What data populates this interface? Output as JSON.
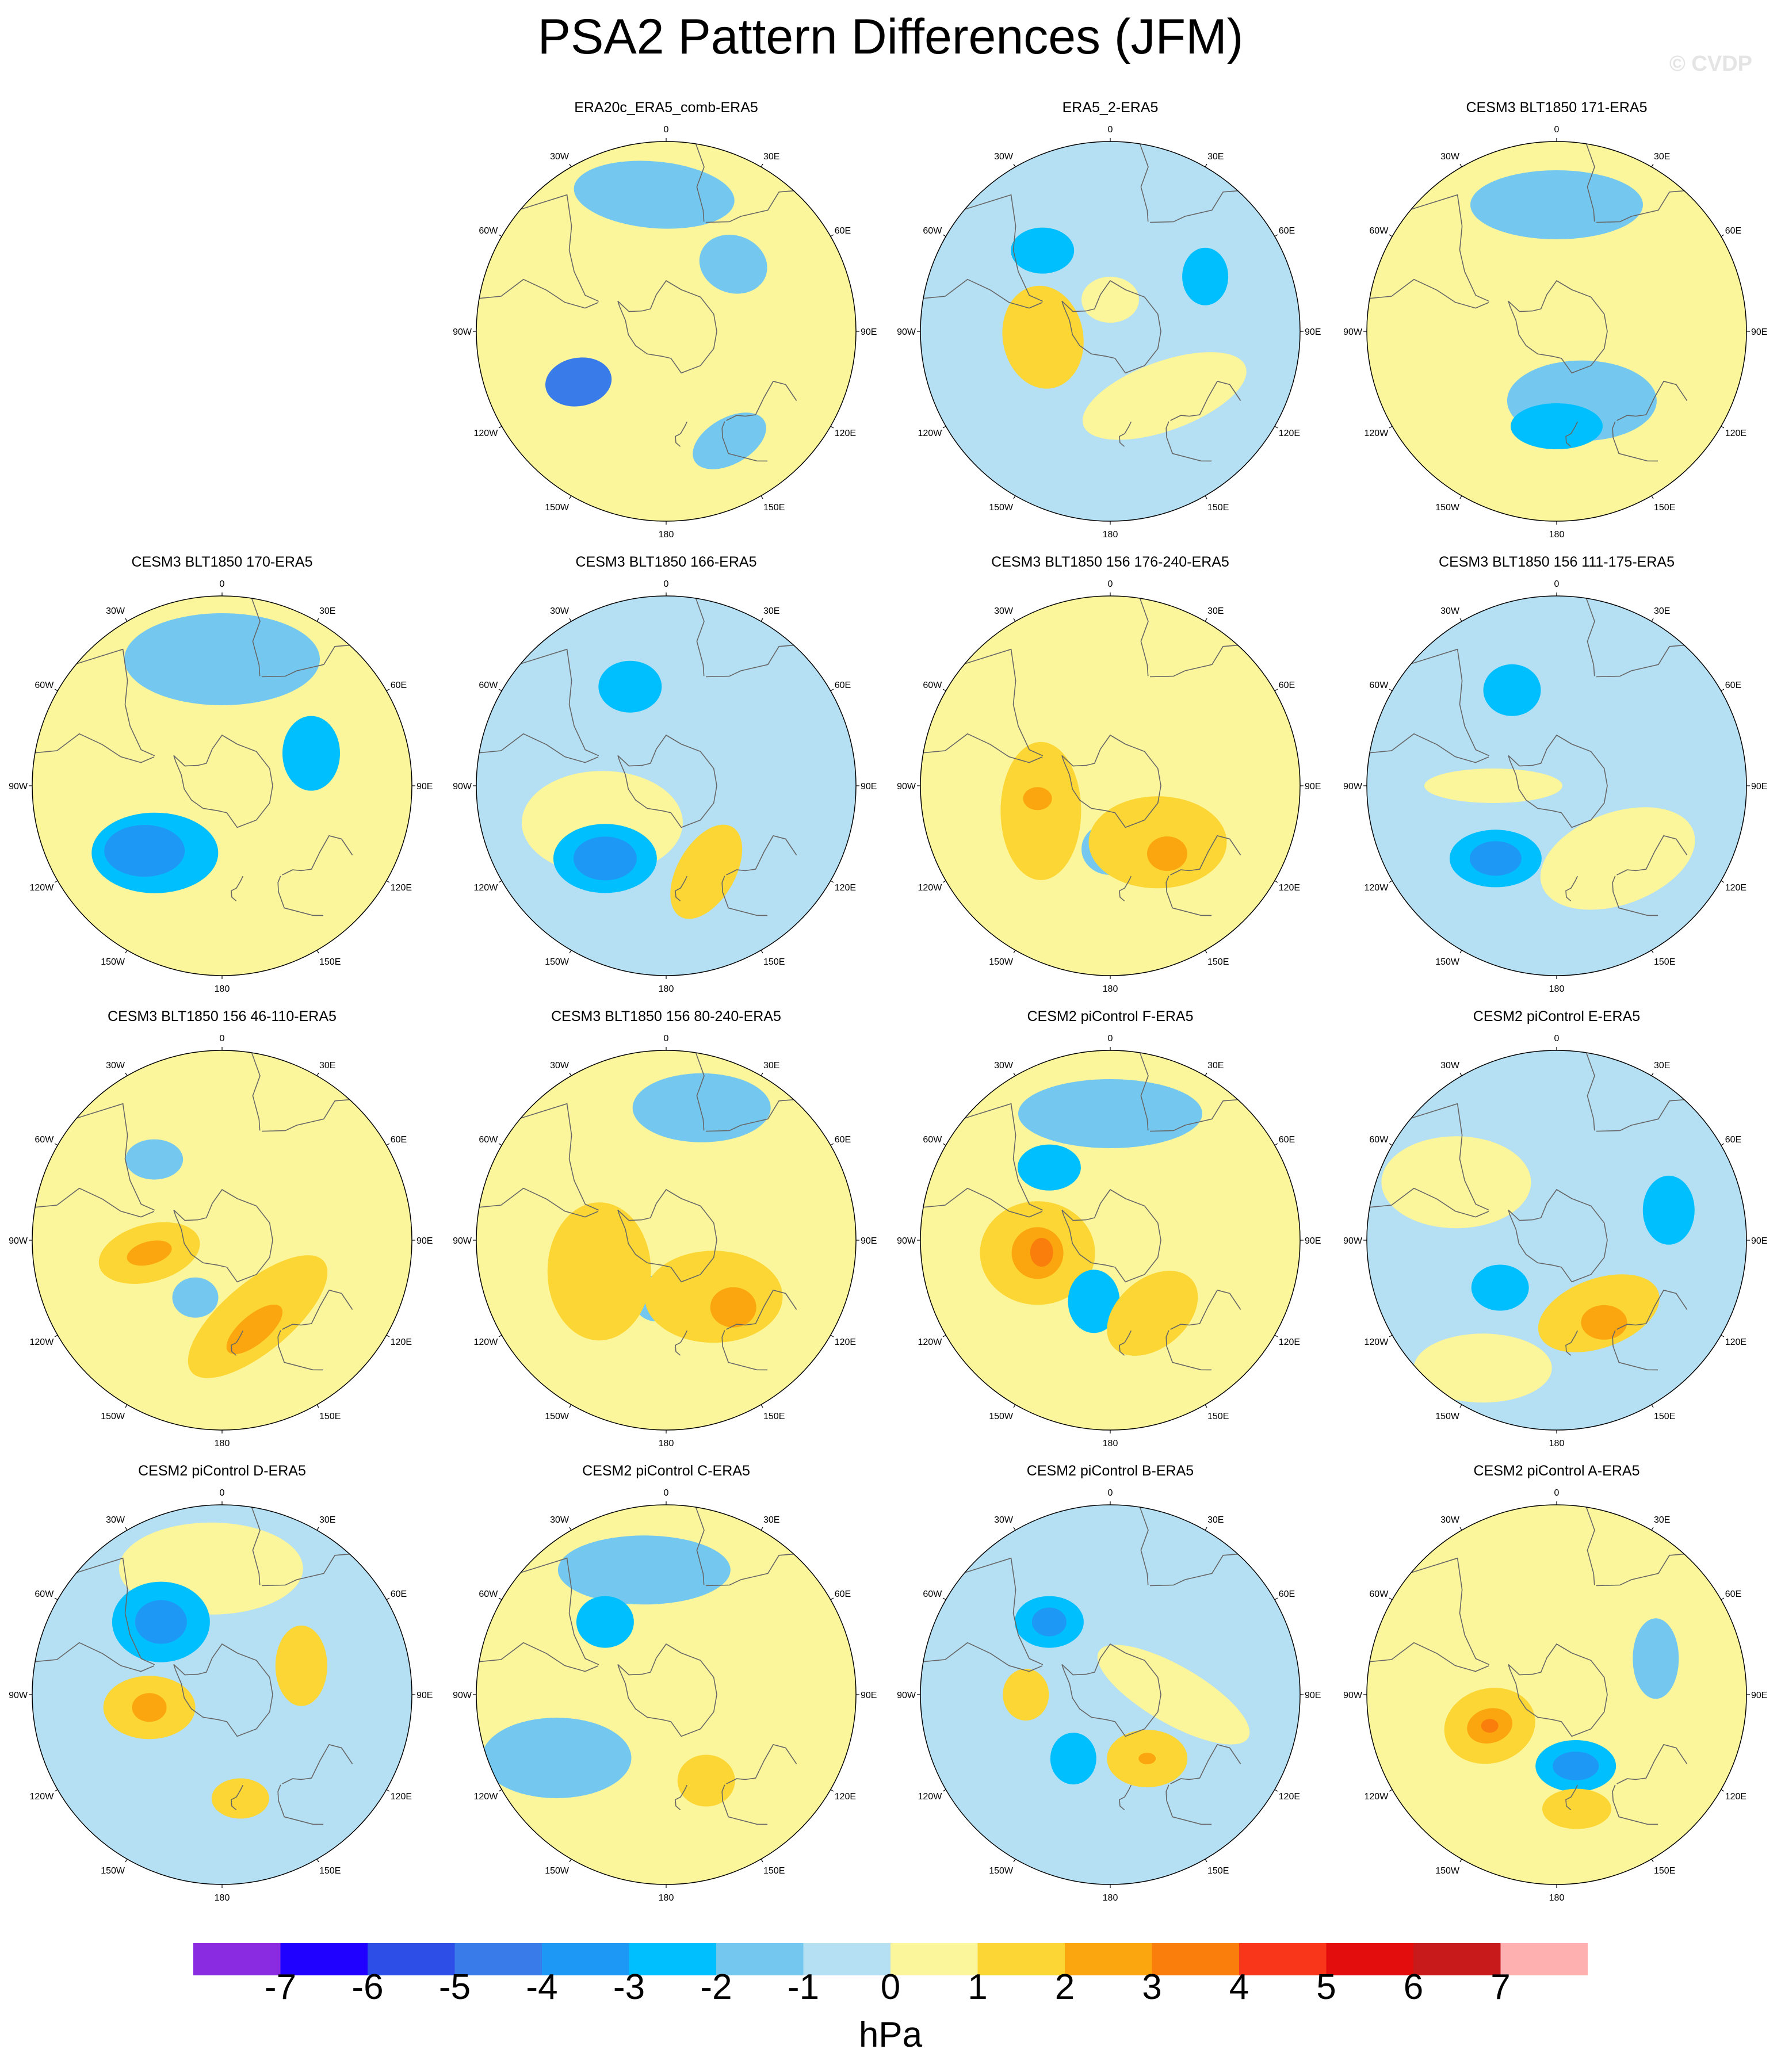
{
  "title": "PSA2 Pattern Differences (JFM)",
  "watermark": "© CVDP",
  "lon_labels": [
    "0",
    "30E",
    "60E",
    "90E",
    "120E",
    "150E",
    "180",
    "150W",
    "120W",
    "90W",
    "60W",
    "30W"
  ],
  "colorbar": {
    "units": "hPa",
    "ticks": [
      "-7",
      "-6",
      "-5",
      "-4",
      "-3",
      "-2",
      "-1",
      "0",
      "1",
      "2",
      "3",
      "4",
      "5",
      "6",
      "7"
    ],
    "colors": [
      "#8a2be2",
      "#2000ff",
      "#2e4ee8",
      "#3a7bea",
      "#1e98f5",
      "#00bfff",
      "#74c8f0",
      "#b5dff2",
      "#fbf59b",
      "#fcd634",
      "#fba50f",
      "#f97e0c",
      "#f9361a",
      "#e40d0d",
      "#c81a1a",
      "#feb0b0"
    ]
  },
  "panels": [
    {
      "title": "ERA20c_ERA5_comb-ERA5",
      "background": "#fbf59b",
      "blobs": [
        {
          "lat": -42,
          "lon": -120,
          "rx": 58,
          "ry": 42,
          "rot": -10,
          "level": -4
        },
        {
          "lat": -55,
          "lon": -90,
          "rx": 52,
          "ry": 24,
          "rot": -15,
          "level": 1
        },
        {
          "lat": -25,
          "lon": -5,
          "rx": 140,
          "ry": 58,
          "rot": 5,
          "level": -1
        },
        {
          "lat": -45,
          "lon": 45,
          "rx": 60,
          "ry": 50,
          "rot": 20,
          "level": -1
        },
        {
          "lat": -30,
          "lon": 150,
          "rx": 70,
          "ry": 40,
          "rot": -30,
          "level": -1
        }
      ]
    },
    {
      "title": "ERA5_2-ERA5",
      "background": "#b5dff2",
      "blobs": [
        {
          "lat": -58,
          "lon": -95,
          "rx": 70,
          "ry": 90,
          "rot": -10,
          "level": 2
        },
        {
          "lat": -50,
          "lon": 140,
          "rx": 150,
          "ry": 60,
          "rot": -20,
          "level": 1
        },
        {
          "lat": -38,
          "lon": 60,
          "rx": 40,
          "ry": 50,
          "rot": 0,
          "level": -2
        },
        {
          "lat": -40,
          "lon": -40,
          "rx": 55,
          "ry": 40,
          "rot": 0,
          "level": -2
        },
        {
          "lat": -75,
          "lon": 0,
          "rx": 50,
          "ry": 40,
          "rot": 0,
          "level": 1
        }
      ]
    },
    {
      "title": "CESM3 BLT1850 171-ERA5",
      "background": "#fbf59b",
      "blobs": [
        {
          "lat": -55,
          "lon": 160,
          "rx": 130,
          "ry": 70,
          "rot": 0,
          "level": -1
        },
        {
          "lat": -45,
          "lon": 180,
          "rx": 80,
          "ry": 40,
          "rot": 0,
          "level": -2
        },
        {
          "lat": -30,
          "lon": 0,
          "rx": 150,
          "ry": 60,
          "rot": 0,
          "level": -1
        },
        {
          "lat": -45,
          "lon": -100,
          "rx": 20,
          "ry": 15,
          "rot": 0,
          "level": 1
        }
      ]
    },
    {
      "title": "CESM3 BLT1850 170-ERA5",
      "background": "#fbf59b",
      "blobs": [
        {
          "lat": -45,
          "lon": -135,
          "rx": 110,
          "ry": 70,
          "rot": 0,
          "level": -2
        },
        {
          "lat": -42,
          "lon": -130,
          "rx": 70,
          "ry": 45,
          "rot": 0,
          "level": -3
        },
        {
          "lat": -45,
          "lon": 70,
          "rx": 50,
          "ry": 65,
          "rot": 0,
          "level": -2
        },
        {
          "lat": -30,
          "lon": 0,
          "rx": 170,
          "ry": 80,
          "rot": 0,
          "level": -1
        },
        {
          "lat": -55,
          "lon": -85,
          "rx": 40,
          "ry": 40,
          "rot": 0,
          "level": 1
        }
      ]
    },
    {
      "title": "CESM3 BLT1850 166-ERA5",
      "background": "#b5dff2",
      "blobs": [
        {
          "lat": -55,
          "lon": -120,
          "rx": 140,
          "ry": 90,
          "rot": 0,
          "level": 1
        },
        {
          "lat": -45,
          "lon": -140,
          "rx": 90,
          "ry": 60,
          "rot": 0,
          "level": -2
        },
        {
          "lat": -45,
          "lon": -140,
          "rx": 55,
          "ry": 38,
          "rot": 0,
          "level": -3
        },
        {
          "lat": -45,
          "lon": 155,
          "rx": 50,
          "ry": 90,
          "rot": 30,
          "level": 2
        },
        {
          "lat": -40,
          "lon": -20,
          "rx": 55,
          "ry": 45,
          "rot": 0,
          "level": -2
        }
      ]
    },
    {
      "title": "CESM3 BLT1850 156 176-240-ERA5",
      "background": "#fbf59b",
      "blobs": [
        {
          "lat": -55,
          "lon": -110,
          "rx": 70,
          "ry": 120,
          "rot": 0,
          "level": 2
        },
        {
          "lat": -55,
          "lon": 140,
          "rx": 120,
          "ry": 80,
          "rot": 0,
          "level": 2
        },
        {
          "lat": -48,
          "lon": 140,
          "rx": 35,
          "ry": 30,
          "rot": 0,
          "level": 3
        },
        {
          "lat": -60,
          "lon": 180,
          "rx": 50,
          "ry": 45,
          "rot": 0,
          "level": -1
        },
        {
          "lat": -55,
          "lon": -100,
          "rx": 25,
          "ry": 20,
          "rot": 0,
          "level": 3
        }
      ]
    },
    {
      "title": "CESM3 BLT1850 156 111-175-ERA5",
      "background": "#b5dff2",
      "blobs": [
        {
          "lat": -45,
          "lon": -140,
          "rx": 80,
          "ry": 50,
          "rot": 0,
          "level": -2
        },
        {
          "lat": -45,
          "lon": -140,
          "rx": 45,
          "ry": 30,
          "rot": 0,
          "level": -3
        },
        {
          "lat": -40,
          "lon": -25,
          "rx": 50,
          "ry": 45,
          "rot": 0,
          "level": -2
        },
        {
          "lat": -45,
          "lon": 140,
          "rx": 140,
          "ry": 80,
          "rot": -20,
          "level": 1
        },
        {
          "lat": -60,
          "lon": -90,
          "rx": 120,
          "ry": 30,
          "rot": 0,
          "level": 1
        }
      ]
    },
    {
      "title": "CESM3 BLT1850 156 46-110-ERA5",
      "background": "#fbf59b",
      "blobs": [
        {
          "lat": -55,
          "lon": -100,
          "rx": 90,
          "ry": 50,
          "rot": -15,
          "level": 2
        },
        {
          "lat": -55,
          "lon": -100,
          "rx": 40,
          "ry": 20,
          "rot": -15,
          "level": 3
        },
        {
          "lat": -50,
          "lon": 155,
          "rx": 150,
          "ry": 60,
          "rot": -40,
          "level": 2
        },
        {
          "lat": -45,
          "lon": 160,
          "rx": 60,
          "ry": 25,
          "rot": -40,
          "level": 3
        },
        {
          "lat": -60,
          "lon": -155,
          "rx": 40,
          "ry": 35,
          "rot": 0,
          "level": -1
        },
        {
          "lat": -40,
          "lon": -40,
          "rx": 50,
          "ry": 35,
          "rot": 0,
          "level": -1
        }
      ]
    },
    {
      "title": "CESM3 BLT1850 156 80-240-ERA5",
      "background": "#fbf59b",
      "blobs": [
        {
          "lat": -55,
          "lon": -115,
          "rx": 90,
          "ry": 120,
          "rot": 0,
          "level": 2
        },
        {
          "lat": -55,
          "lon": 140,
          "rx": 120,
          "ry": 80,
          "rot": 0,
          "level": 2
        },
        {
          "lat": -45,
          "lon": 135,
          "rx": 40,
          "ry": 35,
          "rot": 0,
          "level": 3
        },
        {
          "lat": -62,
          "lon": -170,
          "rx": 40,
          "ry": 40,
          "rot": 0,
          "level": -1
        },
        {
          "lat": -25,
          "lon": 15,
          "rx": 120,
          "ry": 60,
          "rot": 0,
          "level": -1
        }
      ]
    },
    {
      "title": "CESM2 piControl F-ERA5",
      "background": "#fbf59b",
      "blobs": [
        {
          "lat": -55,
          "lon": -100,
          "rx": 100,
          "ry": 90,
          "rot": 0,
          "level": 2
        },
        {
          "lat": -55,
          "lon": -100,
          "rx": 45,
          "ry": 45,
          "rot": 0,
          "level": 3
        },
        {
          "lat": -57,
          "lon": -100,
          "rx": 20,
          "ry": 25,
          "rot": 0,
          "level": 4
        },
        {
          "lat": -60,
          "lon": -165,
          "rx": 45,
          "ry": 55,
          "rot": 0,
          "level": -2
        },
        {
          "lat": -45,
          "lon": -40,
          "rx": 55,
          "ry": 40,
          "rot": 0,
          "level": -2
        },
        {
          "lat": -30,
          "lon": 0,
          "rx": 160,
          "ry": 60,
          "rot": 0,
          "level": -1
        },
        {
          "lat": -50,
          "lon": 150,
          "rx": 90,
          "ry": 60,
          "rot": -40,
          "level": 2
        }
      ]
    },
    {
      "title": "CESM2 piControl E-ERA5",
      "background": "#b5dff2",
      "blobs": [
        {
          "lat": -50,
          "lon": 150,
          "rx": 110,
          "ry": 60,
          "rot": -20,
          "level": 2
        },
        {
          "lat": -45,
          "lon": 150,
          "rx": 40,
          "ry": 30,
          "rot": 0,
          "level": 3
        },
        {
          "lat": -55,
          "lon": -130,
          "rx": 50,
          "ry": 40,
          "rot": 0,
          "level": -2
        },
        {
          "lat": -35,
          "lon": 75,
          "rx": 45,
          "ry": 60,
          "rot": 0,
          "level": -2
        },
        {
          "lat": -35,
          "lon": -60,
          "rx": 130,
          "ry": 80,
          "rot": 0,
          "level": 1
        },
        {
          "lat": -20,
          "lon": -150,
          "rx": 120,
          "ry": 60,
          "rot": 0,
          "level": 1
        }
      ]
    },
    {
      "title": "CESM2 piControl D-ERA5",
      "background": "#b5dff2",
      "blobs": [
        {
          "lat": -45,
          "lon": -40,
          "rx": 85,
          "ry": 70,
          "rot": 0,
          "level": -2
        },
        {
          "lat": -45,
          "lon": -40,
          "rx": 45,
          "ry": 38,
          "rot": 0,
          "level": -3
        },
        {
          "lat": -55,
          "lon": -100,
          "rx": 80,
          "ry": 55,
          "rot": 0,
          "level": 2
        },
        {
          "lat": -55,
          "lon": -100,
          "rx": 30,
          "ry": 25,
          "rot": 0,
          "level": 3
        },
        {
          "lat": -50,
          "lon": 70,
          "rx": 45,
          "ry": 70,
          "rot": 0,
          "level": 2
        },
        {
          "lat": -40,
          "lon": 170,
          "rx": 50,
          "ry": 35,
          "rot": 0,
          "level": 2
        },
        {
          "lat": -30,
          "lon": -5,
          "rx": 160,
          "ry": 80,
          "rot": 0,
          "level": 1
        }
      ]
    },
    {
      "title": "CESM2 piControl C-ERA5",
      "background": "#fbf59b",
      "blobs": [
        {
          "lat": -45,
          "lon": -40,
          "rx": 50,
          "ry": 45,
          "rot": 0,
          "level": -2
        },
        {
          "lat": -30,
          "lon": -10,
          "rx": 150,
          "ry": 60,
          "rot": 0,
          "level": -1
        },
        {
          "lat": -45,
          "lon": 155,
          "rx": 50,
          "ry": 45,
          "rot": 0,
          "level": 2
        },
        {
          "lat": -30,
          "lon": -120,
          "rx": 130,
          "ry": 70,
          "rot": 0,
          "level": -1
        }
      ]
    },
    {
      "title": "CESM2 piControl B-ERA5",
      "background": "#b5dff2",
      "blobs": [
        {
          "lat": -45,
          "lon": -40,
          "rx": 60,
          "ry": 45,
          "rot": 0,
          "level": -2
        },
        {
          "lat": -45,
          "lon": -40,
          "rx": 30,
          "ry": 25,
          "rot": 0,
          "level": -3
        },
        {
          "lat": -55,
          "lon": 150,
          "rx": 70,
          "ry": 50,
          "rot": 0,
          "level": 2
        },
        {
          "lat": -55,
          "lon": 150,
          "rx": 15,
          "ry": 10,
          "rot": 0,
          "level": 3
        },
        {
          "lat": -55,
          "lon": -150,
          "rx": 40,
          "ry": 45,
          "rot": 0,
          "level": -2
        },
        {
          "lat": -50,
          "lon": -90,
          "rx": 40,
          "ry": 45,
          "rot": 0,
          "level": 2
        },
        {
          "lat": -60,
          "lon": 90,
          "rx": 150,
          "ry": 50,
          "rot": 30,
          "level": 1
        }
      ]
    },
    {
      "title": "CESM2 piControl A-ERA5",
      "background": "#fbf59b",
      "blobs": [
        {
          "lat": -55,
          "lon": -115,
          "rx": 80,
          "ry": 65,
          "rot": -15,
          "level": 2
        },
        {
          "lat": -55,
          "lon": -115,
          "rx": 40,
          "ry": 30,
          "rot": -15,
          "level": 3
        },
        {
          "lat": -55,
          "lon": -115,
          "rx": 15,
          "ry": 12,
          "rot": 0,
          "level": 4
        },
        {
          "lat": -55,
          "lon": 165,
          "rx": 70,
          "ry": 45,
          "rot": 0,
          "level": -2
        },
        {
          "lat": -55,
          "lon": 165,
          "rx": 40,
          "ry": 25,
          "rot": 0,
          "level": -3
        },
        {
          "lat": -35,
          "lon": 170,
          "rx": 60,
          "ry": 35,
          "rot": 0,
          "level": 2
        },
        {
          "lat": -40,
          "lon": 70,
          "rx": 40,
          "ry": 70,
          "rot": 0,
          "level": -1
        }
      ]
    }
  ]
}
